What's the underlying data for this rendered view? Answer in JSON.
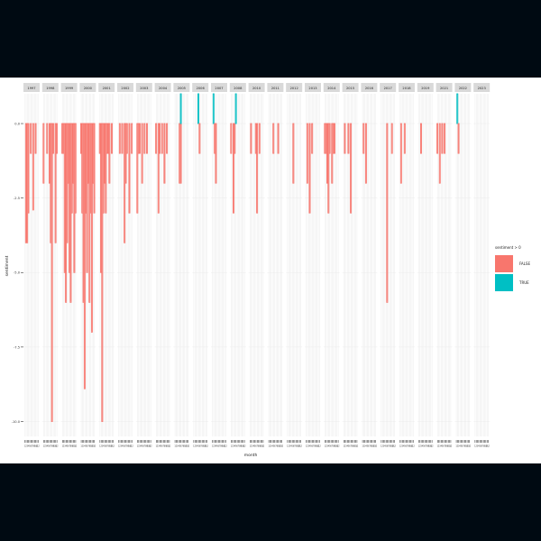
{
  "chart_data": {
    "type": "bar",
    "faceted_by": "year",
    "facets": [
      "1997",
      "1998",
      "1999",
      "2000",
      "2001",
      "2002",
      "2003",
      "2004",
      "2005",
      "2006",
      "2007",
      "2008",
      "2010",
      "2011",
      "2012",
      "2013",
      "2014",
      "2015",
      "2016",
      "2017",
      "2018",
      "2019",
      "2021",
      "2022",
      "2023"
    ],
    "xlabel": "month",
    "ylabel": "sentiment",
    "yticks": [
      0.0,
      -2.5,
      -5.0,
      -7.5,
      -10.0
    ],
    "ytick_labels": [
      "0.0",
      "-2.5",
      "-5.0",
      "-7.5",
      "-10.0"
    ],
    "ylim": [
      -10.5,
      1.0
    ],
    "xtick_labels": [
      "1",
      "2",
      "3",
      "4",
      "5",
      "6",
      "7",
      "8",
      "9",
      "10",
      "11",
      "12"
    ],
    "legend": {
      "title": "sentiment > 0",
      "position": "right",
      "entries": [
        {
          "label": "FALSE",
          "color": "#f8766d"
        },
        {
          "label": "TRUE",
          "color": "#00bfc4"
        }
      ]
    },
    "grid": true,
    "series": [
      {
        "facet": "1997",
        "values": [
          {
            "m": 2,
            "y": -4.0
          },
          {
            "m": 3,
            "y": -4.0
          },
          {
            "m": 4,
            "y": -3.0
          },
          {
            "m": 6,
            "y": -1.0
          },
          {
            "m": 8,
            "y": -2.9
          },
          {
            "m": 10,
            "y": -1.0
          }
        ]
      },
      {
        "facet": "1998",
        "values": [
          {
            "m": 1,
            "y": -2.0
          },
          {
            "m": 4,
            "y": -1.0
          },
          {
            "m": 6,
            "y": -2.0
          },
          {
            "m": 7,
            "y": -4.0
          },
          {
            "m": 8,
            "y": -10.0
          },
          {
            "m": 9,
            "y": -1.0
          },
          {
            "m": 11,
            "y": -4.0
          },
          {
            "m": 12,
            "y": -1.0
          }
        ]
      },
      {
        "facet": "1999",
        "values": [
          {
            "m": 1,
            "y": -1.0
          },
          {
            "m": 2,
            "y": -1.0
          },
          {
            "m": 3,
            "y": -5.0
          },
          {
            "m": 4,
            "y": -6.0
          },
          {
            "m": 5,
            "y": -4.0
          },
          {
            "m": 6,
            "y": -2.0
          },
          {
            "m": 7,
            "y": -5.0
          },
          {
            "m": 8,
            "y": -6.0
          },
          {
            "m": 9,
            "y": -3.0
          },
          {
            "m": 10,
            "y": -2.0
          },
          {
            "m": 11,
            "y": -5.0
          },
          {
            "m": 12,
            "y": -3.0
          }
        ]
      },
      {
        "facet": "2000",
        "values": [
          {
            "m": 1,
            "y": -1.0
          },
          {
            "m": 2,
            "y": -3.0
          },
          {
            "m": 3,
            "y": -6.0
          },
          {
            "m": 4,
            "y": -8.9
          },
          {
            "m": 5,
            "y": -3.0
          },
          {
            "m": 6,
            "y": -5.0
          },
          {
            "m": 7,
            "y": -2.0
          },
          {
            "m": 8,
            "y": -6.0
          },
          {
            "m": 9,
            "y": -3.0
          },
          {
            "m": 10,
            "y": -7.0
          },
          {
            "m": 11,
            "y": -2.0
          },
          {
            "m": 12,
            "y": -3.0
          }
        ]
      },
      {
        "facet": "2001",
        "values": [
          {
            "m": 1,
            "y": -1.0
          },
          {
            "m": 2,
            "y": -5.0
          },
          {
            "m": 3,
            "y": -10.0
          },
          {
            "m": 4,
            "y": -3.0
          },
          {
            "m": 5,
            "y": -2.0
          },
          {
            "m": 6,
            "y": -3.0
          },
          {
            "m": 7,
            "y": -1.0
          },
          {
            "m": 8,
            "y": -1.0
          },
          {
            "m": 9,
            "y": -2.0
          },
          {
            "m": 11,
            "y": -1.0
          }
        ]
      },
      {
        "facet": "2002",
        "values": [
          {
            "m": 2,
            "y": -1.0
          },
          {
            "m": 4,
            "y": -1.0
          },
          {
            "m": 6,
            "y": -4.0
          },
          {
            "m": 7,
            "y": -2.0
          },
          {
            "m": 8,
            "y": -1.0
          },
          {
            "m": 10,
            "y": -3.0
          },
          {
            "m": 12,
            "y": -1.0
          }
        ]
      },
      {
        "facet": "2003",
        "values": [
          {
            "m": 1,
            "y": -3.0
          },
          {
            "m": 2,
            "y": -1.0
          },
          {
            "m": 3,
            "y": -1.0
          },
          {
            "m": 5,
            "y": -2.0
          },
          {
            "m": 7,
            "y": -1.0
          },
          {
            "m": 9,
            "y": -1.0
          }
        ]
      },
      {
        "facet": "2004",
        "values": [
          {
            "m": 1,
            "y": -1.0
          },
          {
            "m": 3,
            "y": -3.0
          },
          {
            "m": 4,
            "y": -1.0
          },
          {
            "m": 6,
            "y": -1.0
          },
          {
            "m": 8,
            "y": -2.0
          },
          {
            "m": 10,
            "y": -1.0
          }
        ]
      },
      {
        "facet": "2005",
        "values": [
          {
            "m": 5,
            "y": -2.0
          },
          {
            "m": 6,
            "y": -2.0
          },
          {
            "m": 6,
            "y": 1.0
          }
        ]
      },
      {
        "facet": "2006",
        "values": [
          {
            "m": 5,
            "y": 1.0
          },
          {
            "m": 6,
            "y": -1.0
          }
        ]
      },
      {
        "facet": "2007",
        "values": [
          {
            "m": 2,
            "y": 1.0
          },
          {
            "m": 3,
            "y": -1.0
          },
          {
            "m": 4,
            "y": -2.0
          }
        ]
      },
      {
        "facet": "2008",
        "values": [
          {
            "m": 1,
            "y": -1.0
          },
          {
            "m": 3,
            "y": -3.0
          },
          {
            "m": 4,
            "y": -1.0
          },
          {
            "m": 5,
            "y": 1.0
          }
        ]
      },
      {
        "facet": "2010",
        "values": [
          {
            "m": 2,
            "y": -1.0
          },
          {
            "m": 6,
            "y": -1.0
          },
          {
            "m": 7,
            "y": -3.0
          },
          {
            "m": 9,
            "y": -1.0
          }
        ]
      },
      {
        "facet": "2011",
        "values": [
          {
            "m": 5,
            "y": -1.0
          },
          {
            "m": 9,
            "y": -1.0
          }
        ]
      },
      {
        "facet": "2012",
        "values": [
          {
            "m": 6,
            "y": -2.0
          }
        ]
      },
      {
        "facet": "2013",
        "values": [
          {
            "m": 2,
            "y": -2.0
          },
          {
            "m": 4,
            "y": -3.0
          },
          {
            "m": 6,
            "y": -1.0
          }
        ]
      },
      {
        "facet": "2014",
        "values": [
          {
            "m": 1,
            "y": -1.0
          },
          {
            "m": 2,
            "y": -1.0
          },
          {
            "m": 3,
            "y": -2.0
          },
          {
            "m": 4,
            "y": -3.0
          },
          {
            "m": 5,
            "y": -1.0
          },
          {
            "m": 7,
            "y": -2.0
          },
          {
            "m": 8,
            "y": -1.0
          },
          {
            "m": 9,
            "y": -1.0
          }
        ]
      },
      {
        "facet": "2015",
        "values": [
          {
            "m": 2,
            "y": -1.0
          },
          {
            "m": 5,
            "y": -1.0
          },
          {
            "m": 7,
            "y": -3.0
          }
        ]
      },
      {
        "facet": "2016",
        "values": [
          {
            "m": 2,
            "y": -1.0
          },
          {
            "m": 4,
            "y": -2.0
          }
        ]
      },
      {
        "facet": "2017",
        "values": [
          {
            "m": 6,
            "y": -6.0
          },
          {
            "m": 10,
            "y": -1.0
          }
        ]
      },
      {
        "facet": "2018",
        "values": [
          {
            "m": 2,
            "y": -2.0
          },
          {
            "m": 5,
            "y": -1.0
          }
        ]
      },
      {
        "facet": "2019",
        "values": [
          {
            "m": 3,
            "y": -1.0
          }
        ]
      },
      {
        "facet": "2021",
        "values": [
          {
            "m": 1,
            "y": -1.0
          },
          {
            "m": 3,
            "y": -2.0
          },
          {
            "m": 5,
            "y": -1.0
          },
          {
            "m": 7,
            "y": -1.0
          }
        ]
      },
      {
        "facet": "2022",
        "values": [
          {
            "m": 2,
            "y": 1.0
          },
          {
            "m": 3,
            "y": -1.0
          }
        ]
      },
      {
        "facet": "2023",
        "values": []
      }
    ]
  }
}
